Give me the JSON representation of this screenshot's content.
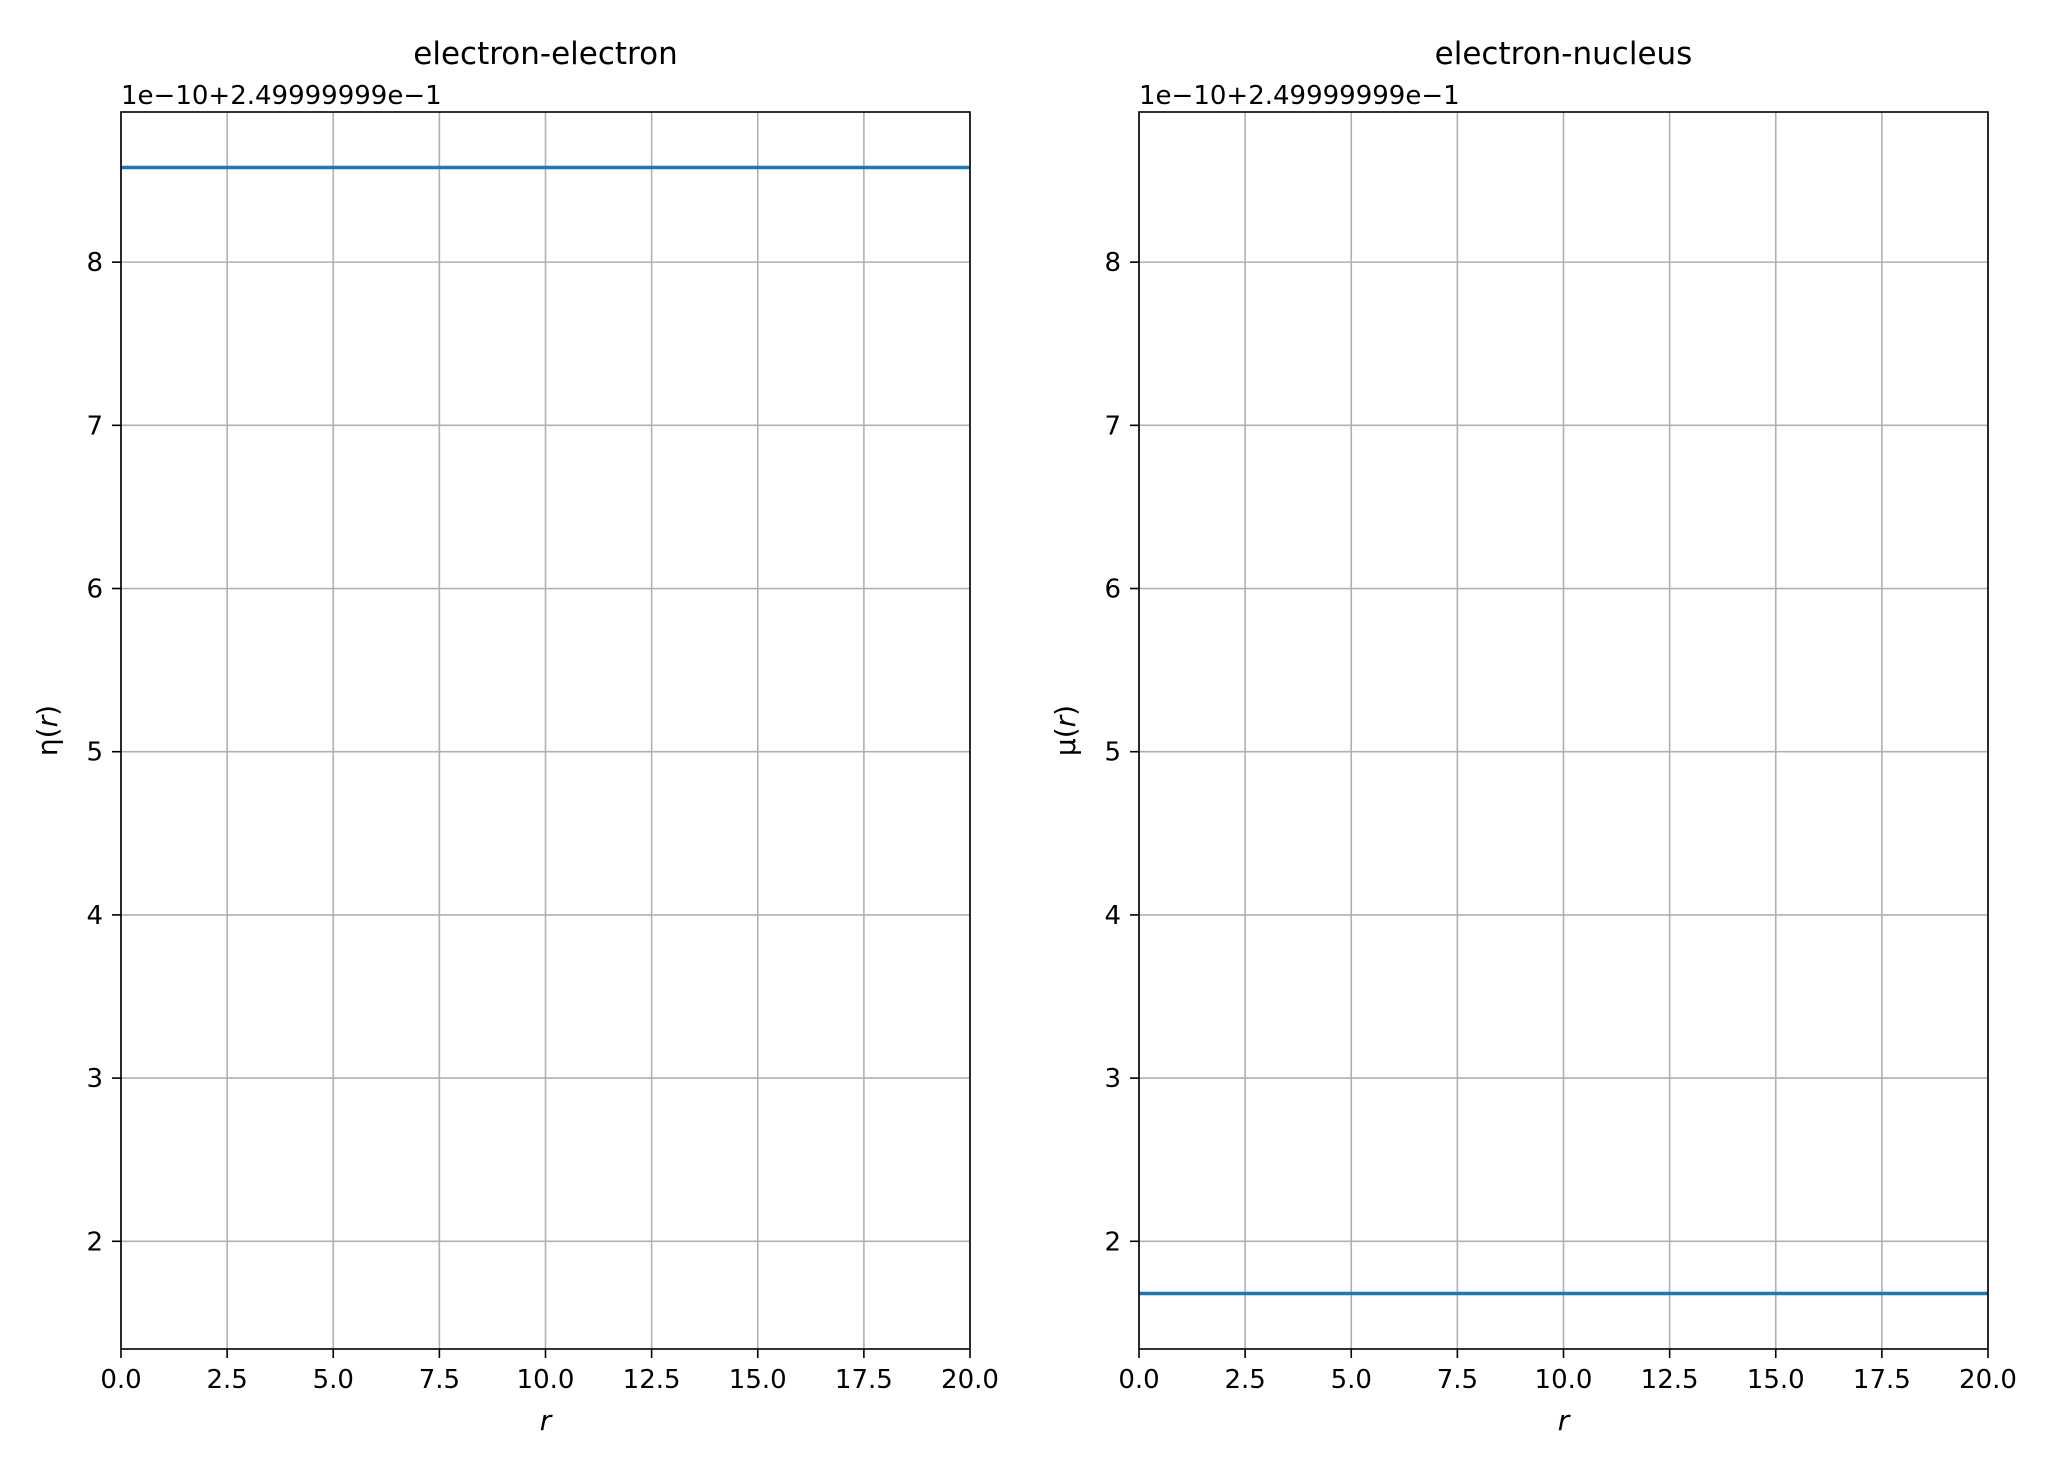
{
  "chart_data": [
    {
      "type": "line",
      "title": "electron-electron",
      "xlabel": "r",
      "ylabel_base": "η(",
      "ylabel_var": "r",
      "ylabel_close": ")",
      "offset_text": "1e−10+2.49999999e−1",
      "xlim": [
        0,
        20
      ],
      "ylim": [
        1.34,
        8.92
      ],
      "xticks": [
        0,
        2.5,
        5,
        7.5,
        10,
        12.5,
        15,
        17.5,
        20
      ],
      "xtick_labels": [
        "0.0",
        "2.5",
        "5.0",
        "7.5",
        "10.0",
        "12.5",
        "15.0",
        "17.5",
        "20.0"
      ],
      "yticks": [
        2,
        3,
        4,
        5,
        6,
        7,
        8
      ],
      "ytick_labels": [
        "2",
        "3",
        "4",
        "5",
        "6",
        "7",
        "8"
      ],
      "grid": true,
      "line_color": "#1f77b4",
      "series": [
        {
          "x": [
            0,
            20
          ],
          "y": [
            8.58,
            8.58
          ]
        }
      ]
    },
    {
      "type": "line",
      "title": "electron-nucleus",
      "xlabel": "r",
      "ylabel_base": "μ(",
      "ylabel_var": "r",
      "ylabel_close": ")",
      "offset_text": "1e−10+2.49999999e−1",
      "xlim": [
        0,
        20
      ],
      "ylim": [
        1.34,
        8.92
      ],
      "xticks": [
        0,
        2.5,
        5,
        7.5,
        10,
        12.5,
        15,
        17.5,
        20
      ],
      "xtick_labels": [
        "0.0",
        "2.5",
        "5.0",
        "7.5",
        "10.0",
        "12.5",
        "15.0",
        "17.5",
        "20.0"
      ],
      "yticks": [
        2,
        3,
        4,
        5,
        6,
        7,
        8
      ],
      "ytick_labels": [
        "2",
        "3",
        "4",
        "5",
        "6",
        "7",
        "8"
      ],
      "grid": true,
      "line_color": "#1f77b4",
      "series": [
        {
          "x": [
            0,
            20
          ],
          "y": [
            1.68,
            1.68
          ]
        }
      ]
    }
  ]
}
